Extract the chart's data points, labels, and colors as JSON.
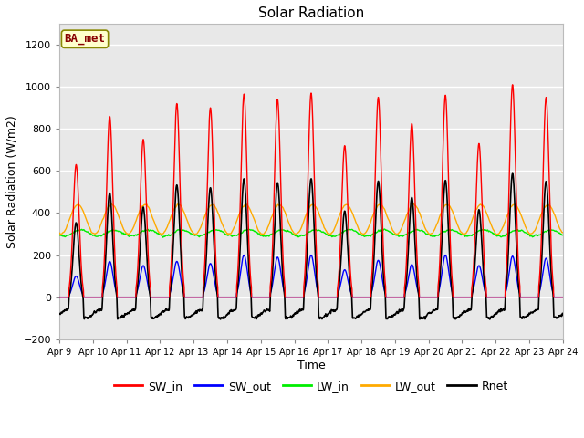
{
  "title": "Solar Radiation",
  "ylabel": "Solar Radiation (W/m2)",
  "xlabel": "Time",
  "ylim": [
    -200,
    1300
  ],
  "yticks": [
    -200,
    0,
    200,
    400,
    600,
    800,
    1000,
    1200
  ],
  "xtick_labels": [
    "Apr 9",
    "Apr 10",
    "Apr 11",
    "Apr 12",
    "Apr 13",
    "Apr 14",
    "Apr 15",
    "Apr 16",
    "Apr 17",
    "Apr 18",
    "Apr 19",
    "Apr 20",
    "Apr 21",
    "Apr 22",
    "Apr 23",
    "Apr 24"
  ],
  "legend_entries": [
    "SW_in",
    "SW_out",
    "LW_in",
    "LW_out",
    "Rnet"
  ],
  "colors": {
    "SW_in": "#ff0000",
    "SW_out": "#0000ff",
    "LW_in": "#00ee00",
    "LW_out": "#ffaa00",
    "Rnet": "#000000"
  },
  "station_label": "BA_met",
  "background_color": "#e8e8e8",
  "grid_color": "#ffffff",
  "sw_in_peaks": [
    630,
    860,
    750,
    920,
    900,
    965,
    940,
    970,
    720,
    950,
    825,
    960,
    730,
    1010,
    950
  ],
  "sw_out_peaks": [
    100,
    170,
    150,
    170,
    160,
    200,
    190,
    200,
    130,
    175,
    155,
    200,
    150,
    195,
    185
  ],
  "lw_in_base": 305,
  "lw_out_base": 370,
  "rnet_night": -80
}
